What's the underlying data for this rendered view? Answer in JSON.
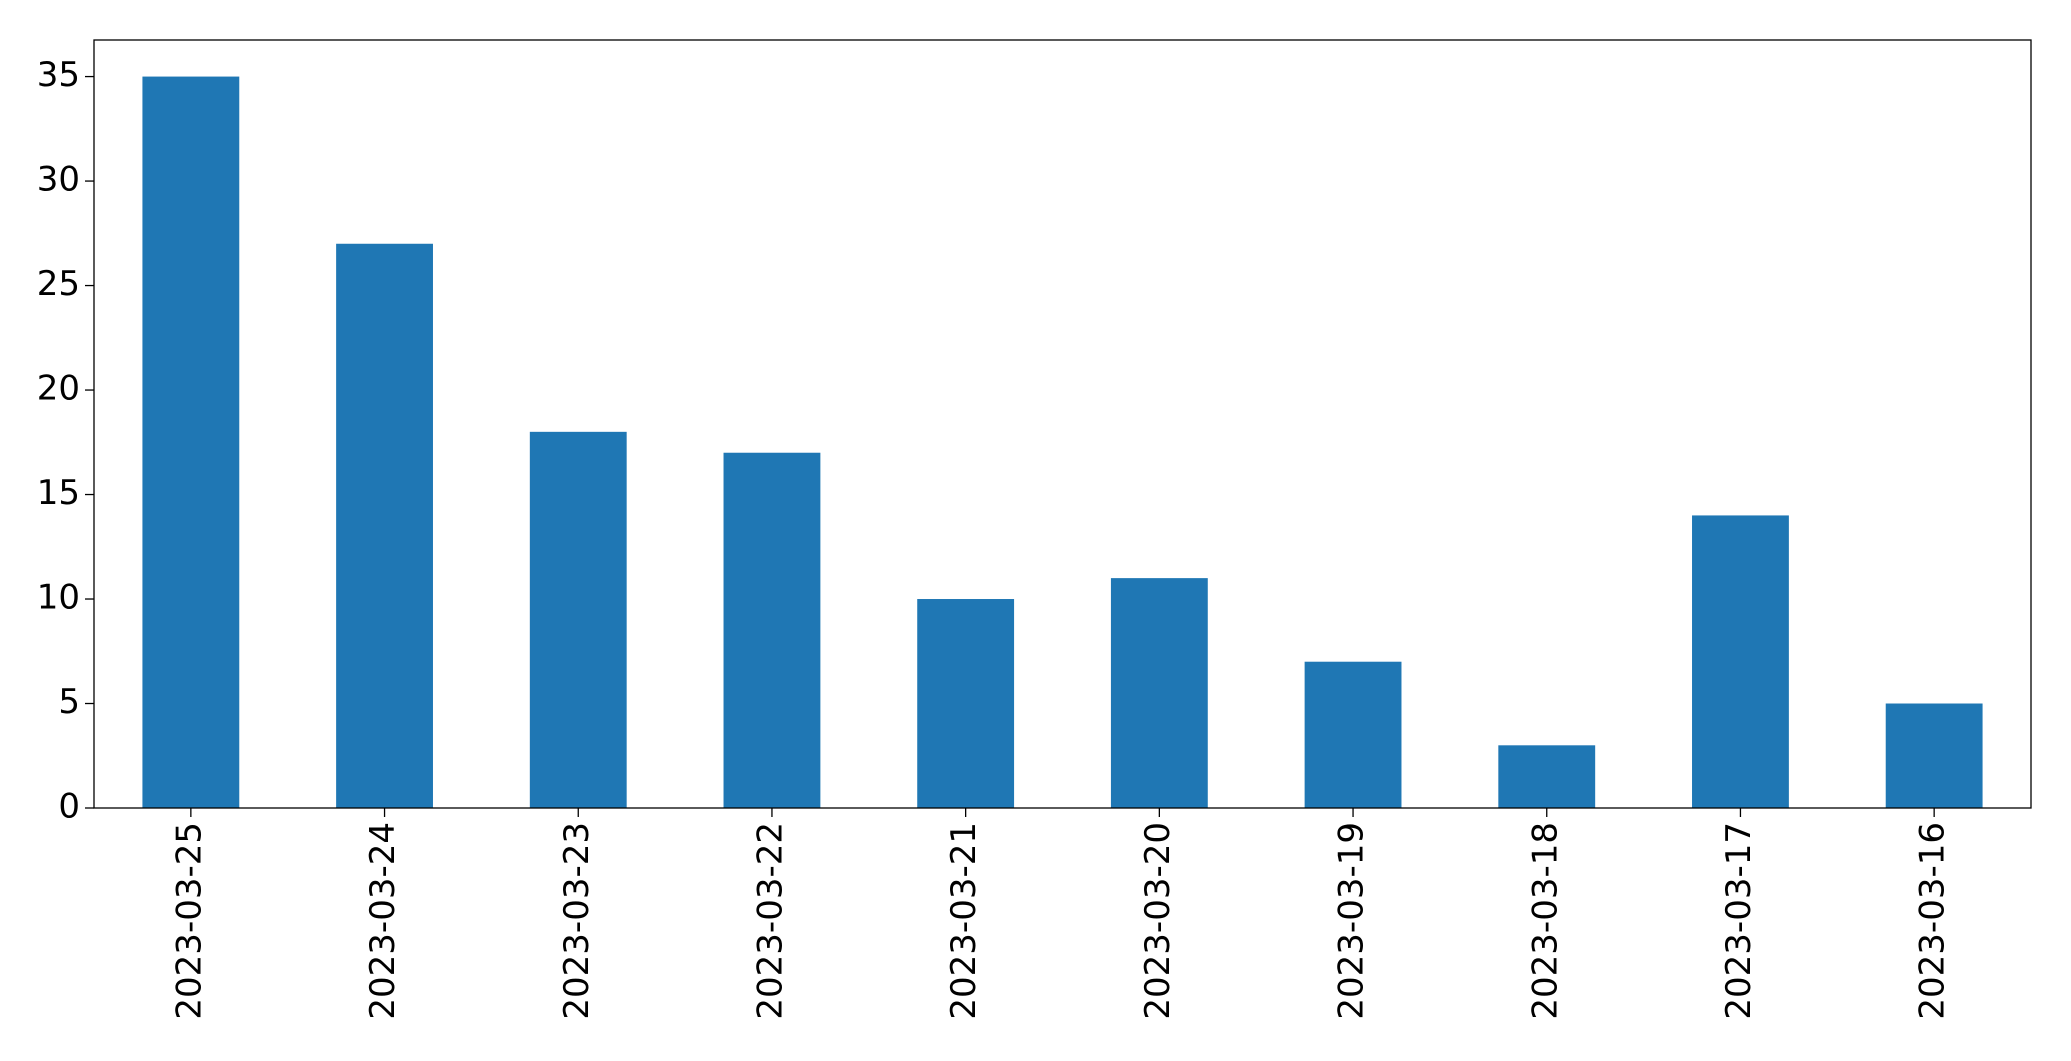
{
  "chart_data": {
    "type": "bar",
    "categories": [
      "2023-03-25",
      "2023-03-24",
      "2023-03-23",
      "2023-03-22",
      "2023-03-21",
      "2023-03-20",
      "2023-03-19",
      "2023-03-18",
      "2023-03-17",
      "2023-03-16"
    ],
    "values": [
      35,
      27,
      18,
      17,
      10,
      11,
      7,
      3,
      14,
      5
    ],
    "color": "#1f77b4",
    "ylim": [
      0,
      36.75
    ],
    "yticks": [
      0,
      5,
      10,
      15,
      20,
      25,
      30,
      35
    ],
    "grid": false
  }
}
